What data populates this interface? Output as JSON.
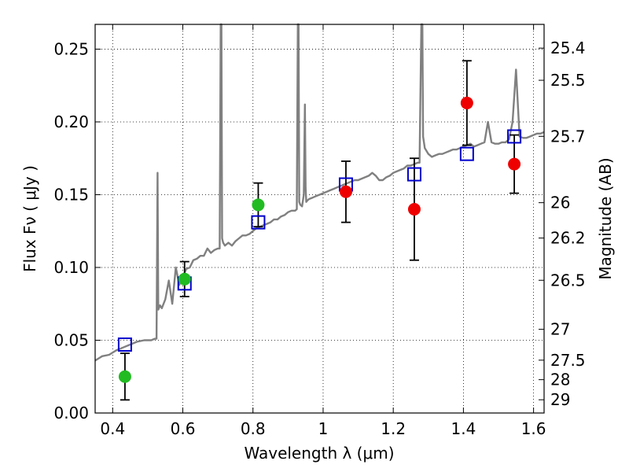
{
  "chart_data": {
    "type": "scatter",
    "xlabel": "Wavelength  λ (μm)",
    "ylabel": "Flux  Fν  ( μJy )",
    "y2label": "Magnitude (AB)",
    "xlim": [
      0.35,
      1.63
    ],
    "ylim": [
      0.0,
      0.267
    ],
    "grid": true,
    "x_ticks": [
      {
        "value": 0.4,
        "label": "0.4"
      },
      {
        "value": 0.6,
        "label": "0.6"
      },
      {
        "value": 0.8,
        "label": "0.8"
      },
      {
        "value": 1.0,
        "label": "1"
      },
      {
        "value": 1.2,
        "label": "1.2"
      },
      {
        "value": 1.4,
        "label": "1.4"
      },
      {
        "value": 1.6,
        "label": "1.6"
      }
    ],
    "y_ticks": [
      {
        "value": 0.0,
        "label": "0.00"
      },
      {
        "value": 0.05,
        "label": "0.05"
      },
      {
        "value": 0.1,
        "label": "0.10"
      },
      {
        "value": 0.15,
        "label": "0.15"
      },
      {
        "value": 0.2,
        "label": "0.20"
      },
      {
        "value": 0.25,
        "label": "0.25"
      }
    ],
    "y2_ticks": [
      {
        "flux": 0.2507,
        "label": "25.4"
      },
      {
        "flux": 0.2286,
        "label": "25.5"
      },
      {
        "flux": 0.1901,
        "label": "25.7"
      },
      {
        "flux": 0.1445,
        "label": "26"
      },
      {
        "flux": 0.1202,
        "label": "26.2"
      },
      {
        "flux": 0.0912,
        "label": "26.5"
      },
      {
        "flux": 0.0575,
        "label": "27"
      },
      {
        "flux": 0.0363,
        "label": "27.5"
      },
      {
        "flux": 0.0229,
        "label": "28"
      },
      {
        "flux": 0.0091,
        "label": "29"
      }
    ],
    "series": [
      {
        "kind": "spectrum",
        "color": "#808080",
        "x": [
          0.35,
          0.37,
          0.39,
          0.41,
          0.43,
          0.45,
          0.47,
          0.49,
          0.51,
          0.52,
          0.525,
          0.528,
          0.53,
          0.535,
          0.54,
          0.55,
          0.56,
          0.57,
          0.58,
          0.59,
          0.6,
          0.61,
          0.62,
          0.63,
          0.64,
          0.65,
          0.66,
          0.67,
          0.68,
          0.69,
          0.7,
          0.705,
          0.708,
          0.71,
          0.712,
          0.715,
          0.72,
          0.73,
          0.74,
          0.75,
          0.76,
          0.77,
          0.78,
          0.79,
          0.8,
          0.81,
          0.82,
          0.83,
          0.84,
          0.85,
          0.86,
          0.87,
          0.88,
          0.89,
          0.9,
          0.91,
          0.92,
          0.925,
          0.928,
          0.93,
          0.932,
          0.935,
          0.94,
          0.945,
          0.948,
          0.95,
          0.952,
          0.955,
          0.96,
          0.97,
          0.98,
          0.99,
          1.0,
          1.01,
          1.02,
          1.03,
          1.04,
          1.05,
          1.06,
          1.07,
          1.08,
          1.09,
          1.1,
          1.11,
          1.12,
          1.13,
          1.14,
          1.15,
          1.16,
          1.17,
          1.18,
          1.19,
          1.2,
          1.21,
          1.22,
          1.23,
          1.24,
          1.25,
          1.26,
          1.27,
          1.275,
          1.28,
          1.283,
          1.285,
          1.29,
          1.3,
          1.31,
          1.32,
          1.33,
          1.34,
          1.35,
          1.36,
          1.37,
          1.38,
          1.39,
          1.4,
          1.41,
          1.42,
          1.43,
          1.44,
          1.45,
          1.46,
          1.47,
          1.48,
          1.49,
          1.5,
          1.51,
          1.52,
          1.53,
          1.54,
          1.55,
          1.56,
          1.57,
          1.58,
          1.59,
          1.6,
          1.61,
          1.62,
          1.63
        ],
        "y": [
          0.036,
          0.039,
          0.04,
          0.043,
          0.045,
          0.047,
          0.049,
          0.05,
          0.05,
          0.051,
          0.051,
          0.165,
          0.071,
          0.074,
          0.072,
          0.078,
          0.091,
          0.075,
          0.1,
          0.088,
          0.094,
          0.099,
          0.1,
          0.105,
          0.106,
          0.108,
          0.108,
          0.113,
          0.11,
          0.112,
          0.113,
          0.113,
          0.267,
          0.267,
          0.12,
          0.117,
          0.115,
          0.117,
          0.115,
          0.118,
          0.12,
          0.122,
          0.122,
          0.123,
          0.125,
          0.127,
          0.128,
          0.129,
          0.13,
          0.131,
          0.133,
          0.133,
          0.135,
          0.136,
          0.138,
          0.139,
          0.139,
          0.14,
          0.267,
          0.267,
          0.145,
          0.143,
          0.142,
          0.15,
          0.212,
          0.155,
          0.145,
          0.146,
          0.147,
          0.148,
          0.149,
          0.15,
          0.151,
          0.152,
          0.153,
          0.154,
          0.155,
          0.156,
          0.157,
          0.158,
          0.159,
          0.16,
          0.16,
          0.161,
          0.162,
          0.163,
          0.165,
          0.163,
          0.16,
          0.16,
          0.162,
          0.163,
          0.165,
          0.166,
          0.167,
          0.168,
          0.17,
          0.17,
          0.171,
          0.172,
          0.172,
          0.267,
          0.267,
          0.19,
          0.182,
          0.178,
          0.176,
          0.177,
          0.178,
          0.178,
          0.179,
          0.18,
          0.181,
          0.181,
          0.182,
          0.183,
          0.184,
          0.185,
          0.183,
          0.184,
          0.185,
          0.186,
          0.2,
          0.186,
          0.185,
          0.185,
          0.186,
          0.186,
          0.188,
          0.2,
          0.236,
          0.19,
          0.189,
          0.189,
          0.19,
          0.191,
          0.192,
          0.192,
          0.193
        ]
      },
      {
        "kind": "model-points",
        "color": "#0000cc",
        "x": [
          0.435,
          0.605,
          0.815,
          1.065,
          1.26,
          1.41,
          1.545
        ],
        "y": [
          0.047,
          0.089,
          0.131,
          0.157,
          0.164,
          0.178,
          0.19
        ]
      },
      {
        "kind": "optical-points",
        "color": "#22bb22",
        "x": [
          0.435,
          0.605,
          0.815
        ],
        "y": [
          0.025,
          0.092,
          0.143
        ],
        "yerr": [
          0.016,
          0.012,
          0.015
        ]
      },
      {
        "kind": "nir-points",
        "color": "#ee0000",
        "x": [
          1.065,
          1.26,
          1.41,
          1.545
        ],
        "y": [
          0.152,
          0.14,
          0.213,
          0.171
        ],
        "yerr": [
          0.021,
          0.035,
          0.029,
          0.02
        ]
      }
    ]
  }
}
